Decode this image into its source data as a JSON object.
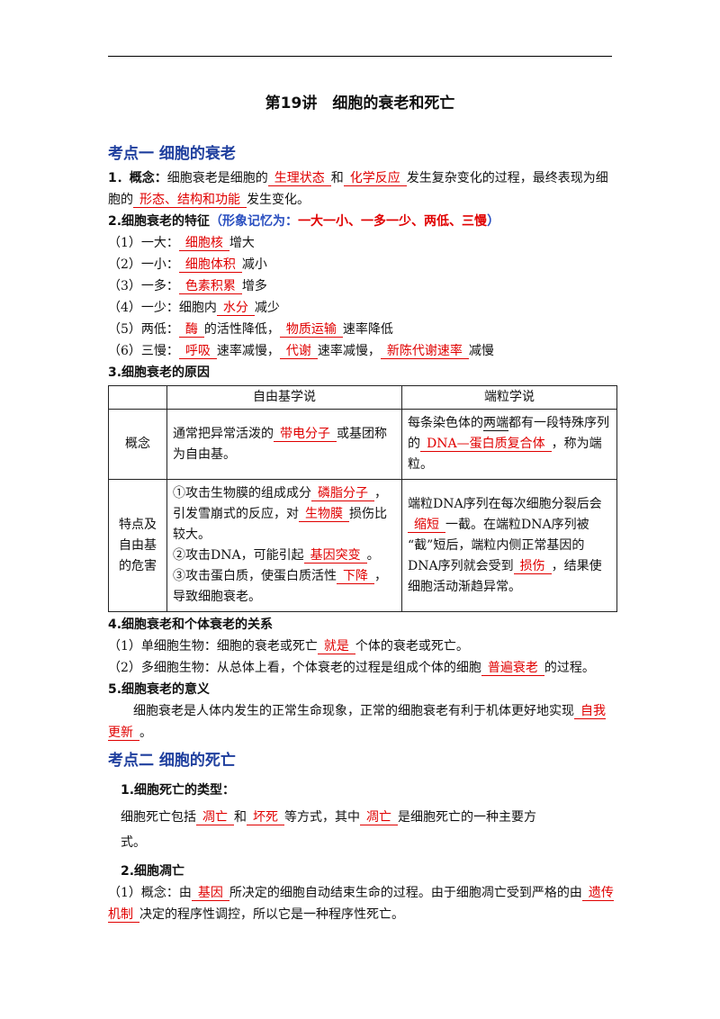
{
  "header": {
    "title": "第19讲　细胞的衰老和死亡"
  },
  "blocks": [
    {
      "kind": "heading",
      "runs": [
        "考点一  细胞的衰老"
      ]
    },
    {
      "kind": "p",
      "runs": [
        {
          "bold": "1．概念："
        },
        "细胞衰老是细胞的",
        {
          "blank": "生理状态"
        },
        "和",
        {
          "blank": "化学反应"
        },
        "发生复杂变化的过程，最终表现为细胞的",
        {
          "blank": "形态、结构和功能"
        },
        "发生变化。"
      ]
    },
    {
      "kind": "p",
      "runs": [
        {
          "bold": "2.细胞衰老的特征"
        },
        {
          "blue": "（形象记忆为："
        },
        {
          "red": "一大一小、一多一少、两低、三慢"
        },
        {
          "blue": "）"
        }
      ]
    },
    {
      "kind": "p",
      "runs": [
        "（1）一大：",
        {
          "blank": "细胞核"
        },
        "增大"
      ]
    },
    {
      "kind": "p",
      "runs": [
        "（2）一小：",
        {
          "blank": "细胞体积"
        },
        "减小"
      ]
    },
    {
      "kind": "p",
      "runs": [
        "（3）一多：",
        {
          "blank": "色素积累"
        },
        "增多"
      ]
    },
    {
      "kind": "p",
      "runs": [
        "（4）一少：细胞内",
        {
          "blank": "水分"
        },
        "减少"
      ]
    },
    {
      "kind": "p",
      "runs": [
        "（5）两低：",
        {
          "blank": "酶"
        },
        "的活性降低，",
        {
          "blank": "物质运输"
        },
        "速率降低"
      ]
    },
    {
      "kind": "p",
      "runs": [
        "（6）三慢：",
        {
          "blank": "呼吸"
        },
        "速率减慢，",
        {
          "blank": "代谢"
        },
        "速率减慢，",
        {
          "blank": "新陈代谢速率"
        },
        "减慢"
      ]
    },
    {
      "kind": "p",
      "runs": [
        {
          "bold": "3.细胞衰老的原因"
        }
      ]
    },
    {
      "kind": "table",
      "header": [
        "自由基学说",
        "端粒学说"
      ],
      "rows": [
        {
          "label": "概念",
          "cells": [
            [
              [
                "通常把异常活泼的",
                {
                  "blank": "带电分子"
                },
                "或基团称为自由基。"
              ]
            ],
            [
              [
                "每条染色体的",
                {
                  "underline": "两端"
                },
                "都有一段特殊序列的",
                {
                  "blank": "DNA—蛋白质复合体"
                },
                "，称为端粒。"
              ]
            ]
          ]
        },
        {
          "label": "特点及自由基的危害",
          "cells": [
            [
              [
                "①攻击生物膜的组成成分",
                {
                  "blank": "磷脂分子"
                },
                "，引发雪崩式的反应，对",
                {
                  "blank": "生物膜"
                },
                "损伤比较大。"
              ],
              [
                "②攻击DNA，可能引起",
                {
                  "blank": "基因突变"
                },
                "。"
              ],
              [
                "③攻击蛋白质，使蛋白质活性",
                {
                  "blank": "下降"
                },
                "，导致细胞衰老。"
              ]
            ],
            [
              [
                "端粒DNA序列在每次细胞分裂后会",
                {
                  "blank": "缩短"
                },
                "一截。在端粒DNA序列被“截”短后，端粒内侧正常基因的DNA序列就会受到",
                {
                  "blank": "损伤"
                },
                "，结果使细胞活动渐趋异常。"
              ]
            ]
          ]
        }
      ]
    },
    {
      "kind": "p",
      "runs": [
        {
          "bold": "4.细胞衰老和个体衰老的关系"
        }
      ]
    },
    {
      "kind": "p",
      "runs": [
        "（1）单细胞生物：细胞的衰老或死亡",
        {
          "blank": "就是"
        },
        "个体的衰老或死亡。"
      ]
    },
    {
      "kind": "p",
      "runs": [
        "（2）多细胞生物：从总体上看，个体衰老的过程是组成个体的细胞",
        {
          "blank": "普遍衰老"
        },
        "的过程。"
      ]
    },
    {
      "kind": "p",
      "runs": [
        {
          "bold": "5.细胞衰老的意义"
        }
      ]
    },
    {
      "kind": "p-indent",
      "runs": [
        "细胞衰老是人体内发生的正常生命现象，正常的细胞衰老有利于机体更好地实现",
        {
          "blank": "自我更新"
        },
        "。"
      ]
    },
    {
      "kind": "heading",
      "runs": [
        "考点二  细胞的死亡"
      ]
    },
    {
      "kind": "p-sub",
      "runs": [
        {
          "bold": "1.细胞死亡的类型："
        }
      ]
    },
    {
      "kind": "p-narrow",
      "runs": [
        "细胞死亡包括",
        {
          "blank": "凋亡"
        },
        "和",
        {
          "blank": "坏死"
        },
        "等方式，其中",
        {
          "blank": "凋亡"
        },
        "是细胞死亡的一种主要方式。"
      ]
    },
    {
      "kind": "p-sub",
      "runs": [
        {
          "bold": "2.细胞凋亡"
        }
      ]
    },
    {
      "kind": "p",
      "runs": [
        "（1）概念：由",
        {
          "blank": "基因"
        },
        "所决定的细胞自动结束生命的过程。由于细胞凋亡受到严格的由",
        {
          "blank": "遗传机制"
        },
        "决定的程序性调控，所以它是一种程序性死亡。"
      ]
    }
  ]
}
